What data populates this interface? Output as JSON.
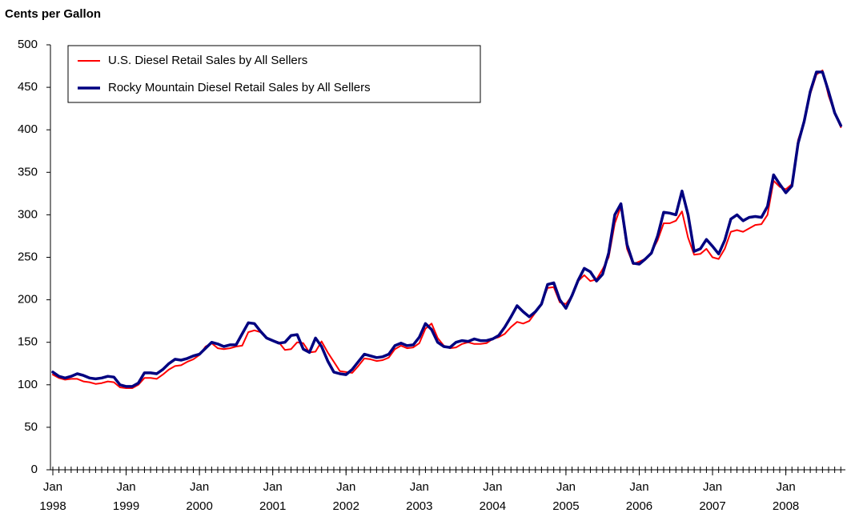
{
  "chart_data": {
    "type": "line",
    "y_label": "Cents per Gallon",
    "x": [
      "1998-01",
      "1998-02",
      "1998-03",
      "1998-04",
      "1998-05",
      "1998-06",
      "1998-07",
      "1998-08",
      "1998-09",
      "1998-10",
      "1998-11",
      "1998-12",
      "1999-01",
      "1999-02",
      "1999-03",
      "1999-04",
      "1999-05",
      "1999-06",
      "1999-07",
      "1999-08",
      "1999-09",
      "1999-10",
      "1999-11",
      "1999-12",
      "2000-01",
      "2000-02",
      "2000-03",
      "2000-04",
      "2000-05",
      "2000-06",
      "2000-07",
      "2000-08",
      "2000-09",
      "2000-10",
      "2000-11",
      "2000-12",
      "2001-01",
      "2001-02",
      "2001-03",
      "2001-04",
      "2001-05",
      "2001-06",
      "2001-07",
      "2001-08",
      "2001-09",
      "2001-10",
      "2001-11",
      "2001-12",
      "2002-01",
      "2002-02",
      "2002-03",
      "2002-04",
      "2002-05",
      "2002-06",
      "2002-07",
      "2002-08",
      "2002-09",
      "2002-10",
      "2002-11",
      "2002-12",
      "2003-01",
      "2003-02",
      "2003-03",
      "2003-04",
      "2003-05",
      "2003-06",
      "2003-07",
      "2003-08",
      "2003-09",
      "2003-10",
      "2003-11",
      "2003-12",
      "2004-01",
      "2004-02",
      "2004-03",
      "2004-04",
      "2004-05",
      "2004-06",
      "2004-07",
      "2004-08",
      "2004-09",
      "2004-10",
      "2004-11",
      "2004-12",
      "2005-01",
      "2005-02",
      "2005-03",
      "2005-04",
      "2005-05",
      "2005-06",
      "2005-07",
      "2005-08",
      "2005-09",
      "2005-10",
      "2005-11",
      "2005-12",
      "2006-01",
      "2006-02",
      "2006-03",
      "2006-04",
      "2006-05",
      "2006-06",
      "2006-07",
      "2006-08",
      "2006-09",
      "2006-10",
      "2006-11",
      "2006-12",
      "2007-01",
      "2007-02",
      "2007-03",
      "2007-04",
      "2007-05",
      "2007-06",
      "2007-07",
      "2007-08",
      "2007-09",
      "2007-10",
      "2007-11",
      "2007-12",
      "2008-01",
      "2008-02",
      "2008-03",
      "2008-04",
      "2008-05",
      "2008-06",
      "2008-07",
      "2008-08",
      "2008-09",
      "2008-10"
    ],
    "series": [
      {
        "name": "U.S. Diesel Retail Sales by All Sellers",
        "color": "#ff0000",
        "width": 2,
        "values": [
          112,
          108,
          106,
          107,
          107,
          104,
          103,
          101,
          102,
          104,
          103,
          97,
          96,
          96,
          100,
          108,
          108,
          107,
          112,
          118,
          122,
          123,
          127,
          130,
          135,
          145,
          149,
          143,
          142,
          143,
          145,
          146,
          162,
          164,
          162,
          155,
          152,
          150,
          141,
          142,
          150,
          149,
          138,
          139,
          151,
          138,
          127,
          116,
          115,
          114,
          122,
          131,
          130,
          128,
          129,
          132,
          142,
          146,
          143,
          144,
          149,
          166,
          172,
          155,
          146,
          143,
          144,
          148,
          150,
          148,
          148,
          149,
          154,
          156,
          160,
          168,
          174,
          172,
          175,
          185,
          196,
          214,
          215,
          197,
          195,
          205,
          222,
          229,
          222,
          224,
          236,
          250,
          290,
          310,
          260,
          242,
          245,
          248,
          256,
          270,
          290,
          290,
          293,
          304,
          273,
          253,
          254,
          260,
          250,
          248,
          260,
          280,
          282,
          280,
          284,
          288,
          289,
          300,
          340,
          333,
          330,
          336,
          388,
          410,
          442,
          465,
          470,
          440,
          420,
          403
        ]
      },
      {
        "name": "Rocky Mountain Diesel Retail Sales by All Sellers",
        "color": "#000080",
        "width": 3.5,
        "values": [
          115,
          110,
          108,
          110,
          113,
          111,
          108,
          107,
          108,
          110,
          109,
          100,
          98,
          98,
          102,
          114,
          114,
          113,
          118,
          125,
          130,
          129,
          131,
          134,
          136,
          143,
          150,
          148,
          145,
          147,
          147,
          160,
          173,
          172,
          163,
          155,
          152,
          149,
          150,
          158,
          159,
          142,
          138,
          155,
          145,
          128,
          115,
          113,
          112,
          118,
          127,
          136,
          134,
          132,
          133,
          136,
          146,
          149,
          146,
          147,
          156,
          172,
          165,
          150,
          145,
          144,
          150,
          152,
          151,
          154,
          152,
          152,
          154,
          158,
          168,
          180,
          193,
          186,
          180,
          186,
          195,
          218,
          220,
          200,
          190,
          205,
          223,
          237,
          233,
          222,
          230,
          255,
          300,
          313,
          265,
          243,
          242,
          248,
          255,
          275,
          303,
          302,
          300,
          328,
          300,
          257,
          260,
          271,
          263,
          254,
          270,
          295,
          300,
          293,
          297,
          298,
          297,
          310,
          347,
          336,
          326,
          334,
          384,
          410,
          445,
          468,
          468,
          445,
          420,
          405
        ]
      }
    ],
    "ylim": [
      0,
      500
    ],
    "yticks": [
      0,
      50,
      100,
      150,
      200,
      250,
      300,
      350,
      400,
      450,
      500
    ],
    "xticks": [
      {
        "value": "1998-01",
        "label": "Jan 1998"
      },
      {
        "value": "1999-01",
        "label": "Jan 1999"
      },
      {
        "value": "2000-01",
        "label": "Jan 2000"
      },
      {
        "value": "2001-01",
        "label": "Jan 2001"
      },
      {
        "value": "2002-01",
        "label": "Jan 2002"
      },
      {
        "value": "2003-01",
        "label": "Jan 2003"
      },
      {
        "value": "2004-01",
        "label": "Jan 2004"
      },
      {
        "value": "2005-01",
        "label": "Jan 2005"
      },
      {
        "value": "2006-01",
        "label": "Jan 2006"
      },
      {
        "value": "2007-01",
        "label": "Jan 2007"
      },
      {
        "value": "2008-01",
        "label": "Jan 2008"
      }
    ],
    "grid": false,
    "legend": "upper left"
  }
}
